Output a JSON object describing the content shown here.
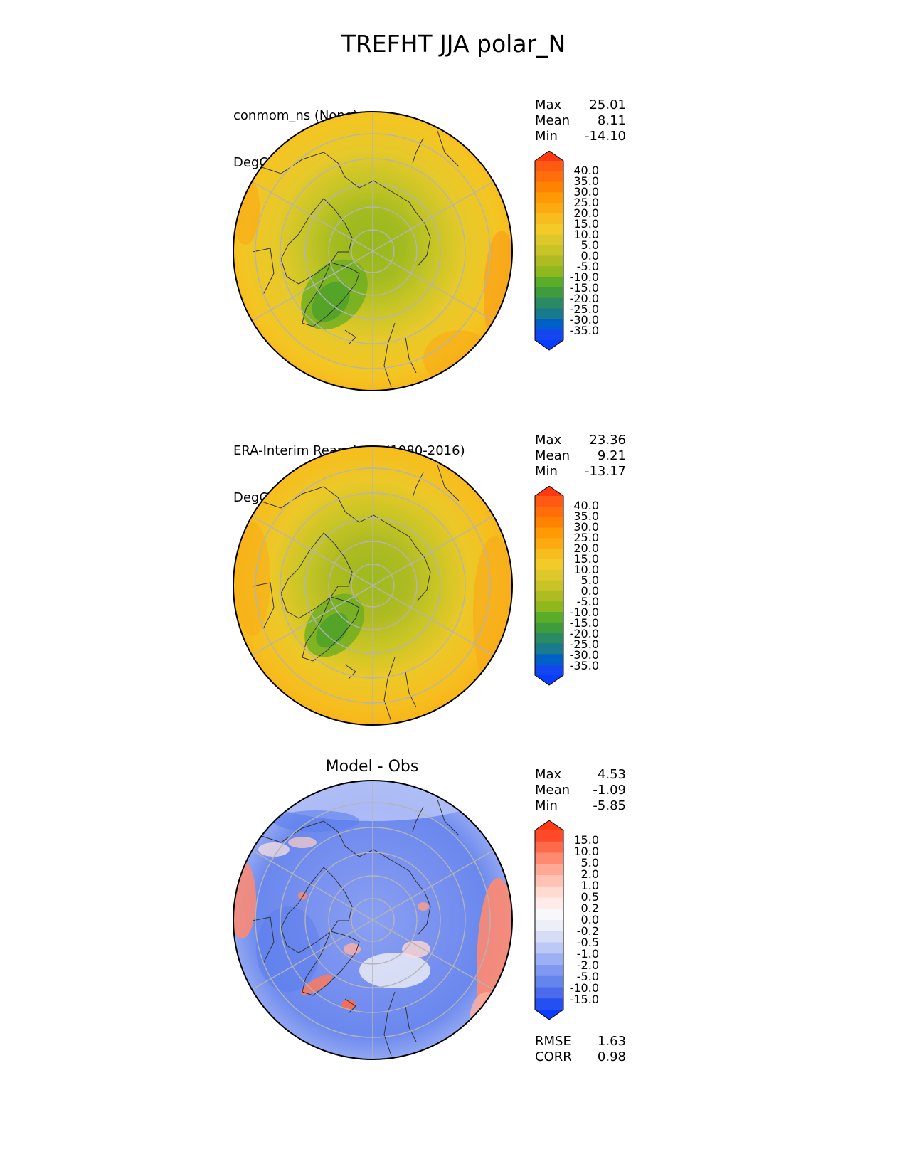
{
  "figure": {
    "title": "TREFHT JJA polar_N"
  },
  "panels": [
    {
      "id": "test",
      "title_line1": "conmom_ns (None)",
      "title_line2": "DegC",
      "stats": [
        {
          "label": "Max",
          "value": "25.01"
        },
        {
          "label": "Mean",
          "value": "8.11"
        },
        {
          "label": "Min",
          "value": "-14.10"
        }
      ],
      "colorbar": {
        "labels": [
          "40.0",
          "35.0",
          "30.0",
          "25.0",
          "20.0",
          "15.0",
          "10.0",
          "5.0",
          "0.0",
          "-5.0",
          "-10.0",
          "-15.0",
          "-20.0",
          "-25.0",
          "-30.0",
          "-35.0"
        ],
        "colors": [
          "#ff5a14",
          "#ff6e0a",
          "#ff8200",
          "#ff9a05",
          "#fcaa0f",
          "#f7bc1e",
          "#f2cb28",
          "#dcc82a",
          "#c8c326",
          "#aebb22",
          "#8eb81e",
          "#5aad28",
          "#3e9c3c",
          "#2a8a64",
          "#187a8c",
          "#0060c8",
          "#1446f0"
        ],
        "over_color": "#ff3a10",
        "under_color": "#0a3cff"
      }
    },
    {
      "id": "reference",
      "title_line1": "ERA-Interim Reanalysis (1980-2016)",
      "title_line2": "DegC",
      "stats": [
        {
          "label": "Max",
          "value": "23.36"
        },
        {
          "label": "Mean",
          "value": "9.21"
        },
        {
          "label": "Min",
          "value": "-13.17"
        }
      ],
      "colorbar": {
        "labels": [
          "40.0",
          "35.0",
          "30.0",
          "25.0",
          "20.0",
          "15.0",
          "10.0",
          "5.0",
          "0.0",
          "-5.0",
          "-10.0",
          "-15.0",
          "-20.0",
          "-25.0",
          "-30.0",
          "-35.0"
        ],
        "colors": [
          "#ff5a14",
          "#ff6e0a",
          "#ff8200",
          "#ff9a05",
          "#fcaa0f",
          "#f7bc1e",
          "#f2cb28",
          "#dcc82a",
          "#c8c326",
          "#aebb22",
          "#8eb81e",
          "#5aad28",
          "#3e9c3c",
          "#2a8a64",
          "#187a8c",
          "#0060c8",
          "#1446f0"
        ],
        "over_color": "#ff3a10",
        "under_color": "#0a3cff"
      }
    },
    {
      "id": "diff",
      "title_center": "Model - Obs",
      "stats": [
        {
          "label": "Max",
          "value": "4.53"
        },
        {
          "label": "Mean",
          "value": "-1.09"
        },
        {
          "label": "Min",
          "value": "-5.85"
        }
      ],
      "metrics": [
        {
          "label": "RMSE",
          "value": "1.63"
        },
        {
          "label": "CORR",
          "value": "0.98"
        }
      ],
      "colorbar": {
        "labels": [
          "15.0",
          "10.0",
          "5.0",
          "2.0",
          "1.0",
          "0.5",
          "0.2",
          "0.0",
          "-0.2",
          "-0.5",
          "-1.0",
          "-2.0",
          "-5.0",
          "-10.0",
          "-15.0"
        ],
        "colors": [
          "#ff4a2a",
          "#ff6a4a",
          "#ff8a70",
          "#ffa896",
          "#ffc2b4",
          "#ffdad0",
          "#ffecea",
          "#f8f8fa",
          "#eceef8",
          "#d6dcf6",
          "#bcc8f6",
          "#9eb0f4",
          "#8098f2",
          "#6484ee",
          "#4a6cec",
          "#2450f2"
        ],
        "over_color": "#ff3a10",
        "under_color": "#0a3cff"
      }
    }
  ]
}
